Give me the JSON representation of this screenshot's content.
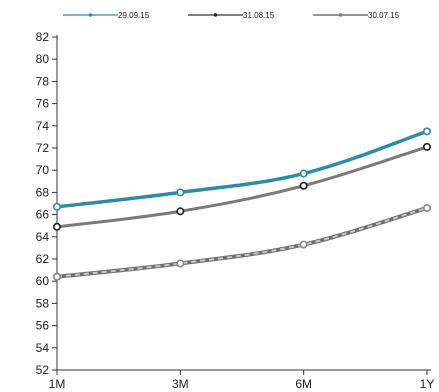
{
  "chart_data": {
    "type": "line",
    "categories": [
      "1M",
      "3M",
      "6M",
      "1Y"
    ],
    "ylim": [
      52,
      82
    ],
    "y_ticks": [
      52,
      54,
      56,
      58,
      60,
      62,
      64,
      66,
      68,
      70,
      72,
      74,
      76,
      78,
      80,
      82
    ],
    "legend_position": "top",
    "grid": false,
    "series": [
      {
        "name": "29.09.15",
        "values": [
          66.7,
          68.0,
          69.7,
          73.5
        ],
        "color": "#2e8ba8",
        "style": "solid-thick"
      },
      {
        "name": "31.08.15",
        "values": [
          64.9,
          66.3,
          68.6,
          72.1
        ],
        "color": "#7a7a7a",
        "style": "solid"
      },
      {
        "name": "30.07.15",
        "values": [
          60.4,
          61.6,
          63.3,
          66.6
        ],
        "color": "#9c9c9c",
        "style": "dashed"
      }
    ]
  }
}
